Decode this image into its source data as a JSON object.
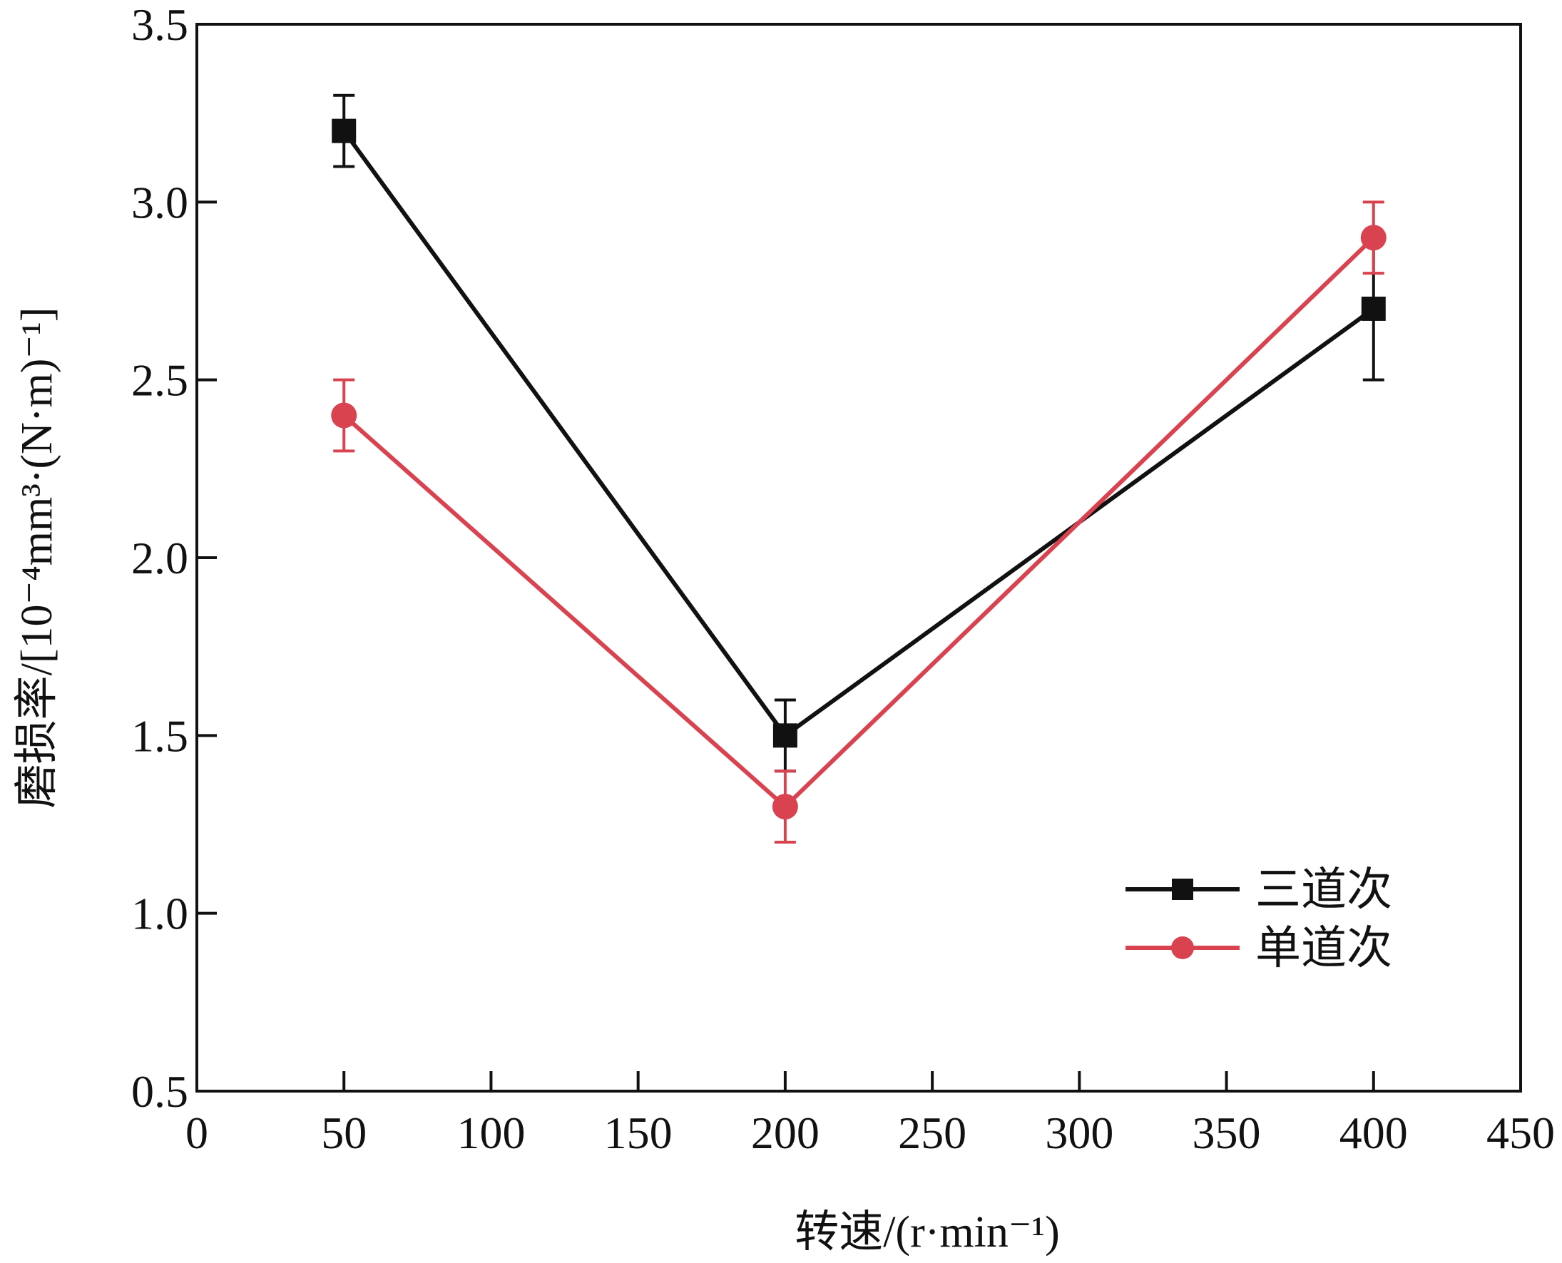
{
  "chart_data": {
    "type": "line",
    "title": "",
    "xlabel": "转速/(r·min⁻¹)",
    "ylabel": "磨损率/[10⁻⁴mm³·(N·m)⁻¹]",
    "xlim": [
      0,
      450
    ],
    "ylim": [
      0.5,
      3.5
    ],
    "xticks": [
      0,
      50,
      100,
      150,
      200,
      250,
      300,
      350,
      400,
      450
    ],
    "yticks": [
      0.5,
      1.0,
      1.5,
      2.0,
      2.5,
      3.0,
      3.5
    ],
    "xtick_labels": [
      "0",
      "50",
      "100",
      "150",
      "200",
      "250",
      "300",
      "350",
      "400",
      "450"
    ],
    "ytick_labels": [
      "0.5",
      "1.0",
      "1.5",
      "2.0",
      "2.5",
      "3.0",
      "3.5"
    ],
    "grid": false,
    "legend_position": "lower-right",
    "series": [
      {
        "name": "三道次",
        "marker": "square",
        "color": "#111111",
        "x": [
          50,
          200,
          400
        ],
        "y": [
          3.2,
          1.5,
          2.7
        ],
        "error": [
          0.1,
          0.1,
          0.2
        ]
      },
      {
        "name": "单道次",
        "marker": "circle",
        "color": "#d94350",
        "x": [
          50,
          200,
          400
        ],
        "y": [
          2.4,
          1.3,
          2.9
        ],
        "error": [
          0.1,
          0.1,
          0.1
        ]
      }
    ]
  }
}
